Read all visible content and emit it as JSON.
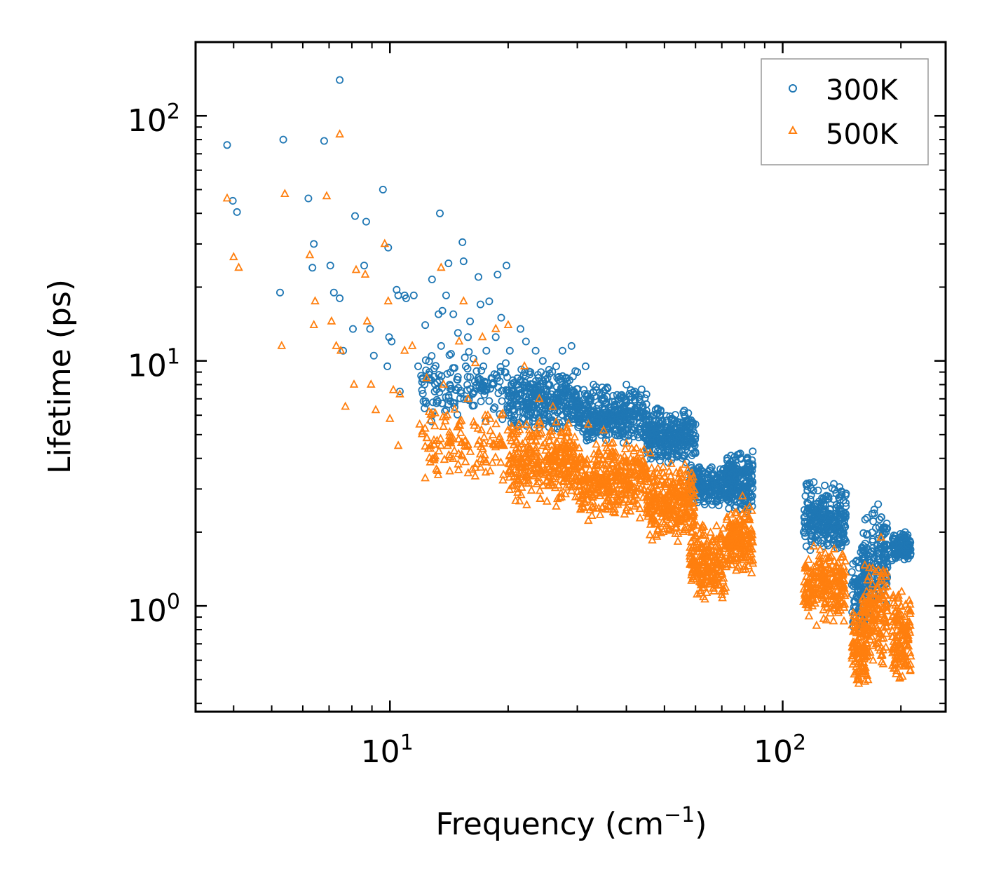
{
  "chart_data": {
    "type": "scatter",
    "title": "",
    "xlabel": "Frequency (cm",
    "xlabel_sup": "−1",
    "xlabel_close": ")",
    "ylabel": "Lifetime (ps)",
    "xscale": "log",
    "yscale": "log",
    "xlim": [
      3.2,
      260
    ],
    "ylim": [
      0.37,
      200
    ],
    "xticks": [
      {
        "base": "10",
        "exp": "1",
        "value": 10
      },
      {
        "base": "10",
        "exp": "2",
        "value": 100
      }
    ],
    "yticks": [
      {
        "base": "10",
        "exp": "0",
        "value": 1
      },
      {
        "base": "10",
        "exp": "1",
        "value": 10
      },
      {
        "base": "10",
        "exp": "2",
        "value": 100
      }
    ],
    "legend_position": "top-right",
    "series": [
      {
        "name": "300K",
        "marker": "circle",
        "color": "#1f77b4",
        "points": [
          [
            3.85,
            76
          ],
          [
            3.98,
            45
          ],
          [
            4.08,
            40.5
          ],
          [
            5.25,
            19
          ],
          [
            5.35,
            80
          ],
          [
            6.2,
            46
          ],
          [
            6.35,
            24
          ],
          [
            6.4,
            30
          ],
          [
            6.8,
            79
          ],
          [
            7.05,
            24.5
          ],
          [
            7.2,
            19
          ],
          [
            7.45,
            140
          ],
          [
            7.45,
            18
          ],
          [
            7.6,
            11
          ],
          [
            8.05,
            13.5
          ],
          [
            8.15,
            39
          ],
          [
            8.6,
            24.5
          ],
          [
            8.7,
            37
          ],
          [
            8.9,
            13.5
          ],
          [
            9.1,
            10.5
          ],
          [
            9.6,
            50
          ],
          [
            9.85,
            9.5
          ],
          [
            9.9,
            29
          ],
          [
            9.95,
            12.5
          ],
          [
            10.1,
            12
          ],
          [
            10.4,
            19.5
          ],
          [
            10.5,
            18.5
          ],
          [
            10.6,
            7.5
          ],
          [
            10.9,
            18.5
          ],
          [
            11.0,
            18
          ],
          [
            11.5,
            18.5
          ],
          [
            11.8,
            9.5
          ],
          [
            12.3,
            14
          ],
          [
            12.6,
            9
          ],
          [
            12.8,
            21.5
          ],
          [
            13.0,
            7.5
          ],
          [
            13.3,
            15.5
          ],
          [
            13.4,
            40
          ],
          [
            13.5,
            11.5
          ],
          [
            13.6,
            16
          ],
          [
            13.9,
            18.5
          ],
          [
            14.1,
            25
          ],
          [
            14.2,
            8
          ],
          [
            14.5,
            15.5
          ],
          [
            14.9,
            13
          ],
          [
            15.3,
            30.5
          ],
          [
            15.4,
            25.5
          ],
          [
            15.6,
            9.5
          ],
          [
            15.8,
            12.5
          ],
          [
            16.0,
            14.5
          ],
          [
            16.4,
            7.5
          ],
          [
            16.8,
            22
          ],
          [
            17.0,
            17
          ],
          [
            17.3,
            9.5
          ],
          [
            17.6,
            11
          ],
          [
            17.9,
            17.5
          ],
          [
            18.2,
            8
          ],
          [
            18.6,
            12.5
          ],
          [
            18.8,
            22.5
          ],
          [
            19.2,
            15
          ],
          [
            19.6,
            9
          ],
          [
            19.8,
            24.5
          ],
          [
            20.2,
            11
          ],
          [
            20.6,
            7.5
          ],
          [
            21.5,
            13.5
          ],
          [
            22.2,
            12
          ],
          [
            22.8,
            9
          ],
          [
            23.5,
            11
          ],
          [
            24.5,
            10
          ],
          [
            25.2,
            8.5
          ],
          [
            26.5,
            9.5
          ],
          [
            27.5,
            11
          ],
          [
            29.0,
            11.5
          ],
          [
            30.0,
            9
          ],
          [
            31.5,
            9.5
          ],
          [
            33.0,
            8
          ],
          [
            35.0,
            7.5
          ],
          [
            37.0,
            7.2
          ],
          [
            40.0,
            8
          ],
          [
            42.0,
            7.5
          ],
          [
            45.0,
            7.3
          ],
          [
            48.0,
            6.4
          ],
          [
            52.0,
            5.8
          ],
          [
            55.0,
            5.3
          ],
          [
            58.0,
            5.0
          ],
          [
            60.0,
            4.2
          ],
          [
            120.0,
            3.2
          ],
          [
            128.0,
            3.1
          ],
          [
            175.0,
            2.6
          ],
          [
            205.0,
            2.0
          ]
        ],
        "bands": [
          {
            "x": [
              12,
              20
            ],
            "y": [
              5.5,
              11
            ],
            "n": 140
          },
          {
            "x": [
              20,
              30
            ],
            "y": [
              5,
              9.5
            ],
            "n": 320
          },
          {
            "x": [
              30,
              45
            ],
            "y": [
              4.5,
              8
            ],
            "n": 360
          },
          {
            "x": [
              45,
              60
            ],
            "y": [
              3.8,
              6.5
            ],
            "n": 300
          },
          {
            "x": [
              58,
              75
            ],
            "y": [
              2.5,
              3.8
            ],
            "n": 220
          },
          {
            "x": [
              72,
              84
            ],
            "y": [
              2.4,
              4.4
            ],
            "n": 200
          },
          {
            "x": [
              113,
              145
            ],
            "y": [
              1.6,
              3.2
            ],
            "n": 260
          },
          {
            "x": [
              150,
              165
            ],
            "y": [
              0.75,
              1.8
            ],
            "n": 100
          },
          {
            "x": [
              160,
              185
            ],
            "y": [
              1.0,
              2.5
            ],
            "n": 160
          },
          {
            "x": [
              190,
              212
            ],
            "y": [
              1.5,
              2.0
            ],
            "n": 140
          }
        ]
      },
      {
        "name": "500K",
        "marker": "triangle",
        "color": "#ff7f0e",
        "points": [
          [
            3.85,
            46
          ],
          [
            4.0,
            26.5
          ],
          [
            4.12,
            24
          ],
          [
            5.3,
            11.5
          ],
          [
            5.4,
            48
          ],
          [
            6.25,
            27
          ],
          [
            6.4,
            14
          ],
          [
            6.45,
            17.5
          ],
          [
            6.9,
            47
          ],
          [
            7.1,
            14.5
          ],
          [
            7.3,
            11.5
          ],
          [
            7.45,
            84
          ],
          [
            7.5,
            11
          ],
          [
            7.7,
            6.5
          ],
          [
            8.1,
            8
          ],
          [
            8.2,
            23.5
          ],
          [
            8.65,
            22.5
          ],
          [
            8.75,
            14.5
          ],
          [
            8.95,
            8
          ],
          [
            9.2,
            6.3
          ],
          [
            9.7,
            30
          ],
          [
            9.9,
            17.5
          ],
          [
            10.0,
            5.8
          ],
          [
            10.2,
            7.6
          ],
          [
            10.5,
            4.5
          ],
          [
            10.6,
            7.3
          ],
          [
            10.9,
            11
          ],
          [
            11.4,
            11.5
          ],
          [
            11.9,
            5.5
          ],
          [
            12.4,
            8.5
          ],
          [
            12.7,
            4.5
          ],
          [
            13.0,
            4.0
          ],
          [
            13.5,
            24
          ],
          [
            13.7,
            8
          ],
          [
            14.0,
            6
          ],
          [
            14.5,
            4.8
          ],
          [
            15.0,
            12
          ],
          [
            15.4,
            17.5
          ],
          [
            15.8,
            7
          ],
          [
            16.2,
            3.6
          ],
          [
            16.5,
            9.8
          ],
          [
            17.2,
            12.5
          ],
          [
            18.0,
            5.8
          ],
          [
            18.6,
            13.5
          ],
          [
            19.2,
            6
          ],
          [
            19.5,
            4.5
          ],
          [
            20.0,
            14
          ],
          [
            20.5,
            5
          ],
          [
            22.0,
            9.5
          ],
          [
            24.0,
            7
          ],
          [
            26.0,
            6.5
          ],
          [
            28.5,
            4.5
          ],
          [
            32.0,
            5.5
          ],
          [
            35.0,
            5.2
          ],
          [
            40.0,
            4.6
          ],
          [
            46.0,
            4.2
          ],
          [
            52.0,
            3.8
          ],
          [
            63.0,
            2.1
          ],
          [
            79.0,
            2.8
          ],
          [
            120.0,
            1.75
          ],
          [
            122.0,
            0.83
          ],
          [
            178.0,
            1.9
          ],
          [
            200.0,
            1.0
          ],
          [
            210.0,
            1.05
          ]
        ],
        "bands": [
          {
            "x": [
              12,
              20
            ],
            "y": [
              3.2,
              6.5
            ],
            "n": 120
          },
          {
            "x": [
              20,
              30
            ],
            "y": [
              2.5,
              5.8
            ],
            "n": 320
          },
          {
            "x": [
              30,
              45
            ],
            "y": [
              2.2,
              4.8
            ],
            "n": 360
          },
          {
            "x": [
              45,
              60
            ],
            "y": [
              1.8,
              3.8
            ],
            "n": 300
          },
          {
            "x": [
              58,
              72
            ],
            "y": [
              1.0,
              2.2
            ],
            "n": 220
          },
          {
            "x": [
              72,
              84
            ],
            "y": [
              1.3,
              2.6
            ],
            "n": 180
          },
          {
            "x": [
              113,
              145
            ],
            "y": [
              0.85,
              1.75
            ],
            "n": 240
          },
          {
            "x": [
              150,
              165
            ],
            "y": [
              0.45,
              1.0
            ],
            "n": 100
          },
          {
            "x": [
              160,
              185
            ],
            "y": [
              0.55,
              1.5
            ],
            "n": 160
          },
          {
            "x": [
              190,
              212
            ],
            "y": [
              0.48,
              1.2
            ],
            "n": 140
          }
        ]
      }
    ]
  }
}
